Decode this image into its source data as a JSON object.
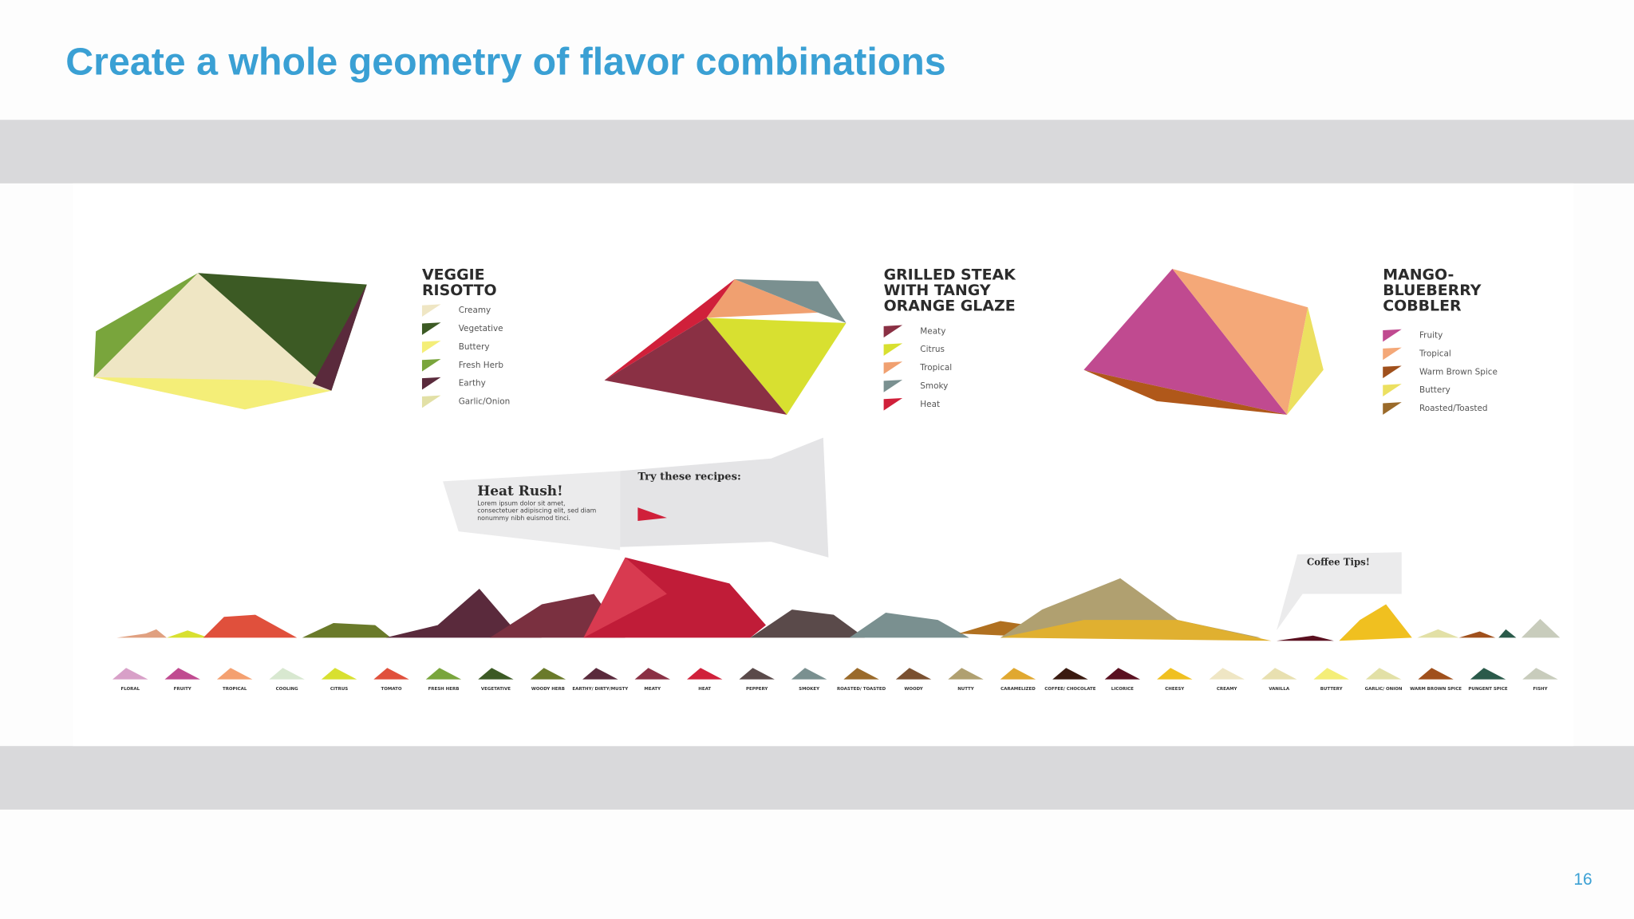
{
  "title": "Create a whole geometry of flavor combinations",
  "recipes": [
    {
      "name_lines": [
        "VEGGIE",
        "RISOTTO"
      ],
      "flavors": [
        {
          "label": "Creamy",
          "color": "#efe6c4"
        },
        {
          "label": "Vegetative",
          "color": "#3c5a24"
        },
        {
          "label": "Buttery",
          "color": "#f4ee78"
        },
        {
          "label": "Fresh Herb",
          "color": "#79a53c"
        },
        {
          "label": "Earthy",
          "color": "#5a2a3c"
        },
        {
          "label": "Garlic/Onion",
          "color": "#e2e0a6"
        }
      ]
    },
    {
      "name_lines": [
        "GRILLED STEAK",
        "WITH TANGY",
        "ORANGE GLAZE"
      ],
      "flavors": [
        {
          "label": "Meaty",
          "color": "#8a3044"
        },
        {
          "label": "Citrus",
          "color": "#d8e030"
        },
        {
          "label": "Tropical",
          "color": "#f0a070"
        },
        {
          "label": "Smoky",
          "color": "#7a9090"
        },
        {
          "label": "Heat",
          "color": "#d0203a"
        }
      ]
    },
    {
      "name_lines": [
        "MANGO-",
        "BLUEBERRY",
        "COBBLER"
      ],
      "flavors": [
        {
          "label": "Fruity",
          "color": "#c04a90"
        },
        {
          "label": "Tropical",
          "color": "#f4a878"
        },
        {
          "label": "Warm Brown Spice",
          "color": "#a0501c"
        },
        {
          "label": "Buttery",
          "color": "#ece060"
        },
        {
          "label": "Roasted/Toasted",
          "color": "#9a6a2a"
        }
      ]
    }
  ],
  "callouts": [
    {
      "title": "Heat Rush!",
      "text": "Lorem ipsum dolor sit amet, consectetuer adipiscing elit, sed diam nonummy nibh euismod tinci."
    },
    {
      "title": "Try these recipes:"
    },
    {
      "title": "Coffee Tips!"
    }
  ],
  "flavor_scale": [
    {
      "label": "FLORAL",
      "color": "#d8a0c8"
    },
    {
      "label": "FRUITY",
      "color": "#c04a90"
    },
    {
      "label": "TROPICAL",
      "color": "#f4a070"
    },
    {
      "label": "COOLING",
      "color": "#d8e8d0"
    },
    {
      "label": "CITRUS",
      "color": "#d8e030"
    },
    {
      "label": "TOMATO",
      "color": "#e0503c"
    },
    {
      "label": "FRESH HERB",
      "color": "#79a53c"
    },
    {
      "label": "VEGETATIVE",
      "color": "#3c5a24"
    },
    {
      "label": "WOODY HERB",
      "color": "#6a7a2a"
    },
    {
      "label": "EARTHY/ DIRTY/MUSTY",
      "color": "#5a2a3c"
    },
    {
      "label": "MEATY",
      "color": "#8a3044"
    },
    {
      "label": "HEAT",
      "color": "#d0203a"
    },
    {
      "label": "PEPPERY",
      "color": "#5a4a4a"
    },
    {
      "label": "SMOKEY",
      "color": "#7a9090"
    },
    {
      "label": "ROASTED/ TOASTED",
      "color": "#9a6a2a"
    },
    {
      "label": "WOODY",
      "color": "#7a5030"
    },
    {
      "label": "NUTTY",
      "color": "#b0a070"
    },
    {
      "label": "CARAMELIZED",
      "color": "#e0a830"
    },
    {
      "label": "COFFEE/ CHOCOLATE",
      "color": "#3a1a10"
    },
    {
      "label": "LICORICE",
      "color": "#5a1020"
    },
    {
      "label": "CHEESY",
      "color": "#f0c020"
    },
    {
      "label": "CREAMY",
      "color": "#efe6c4"
    },
    {
      "label": "VANILLA",
      "color": "#e8e0b0"
    },
    {
      "label": "BUTTERY",
      "color": "#f4ee78"
    },
    {
      "label": "GARLIC/ ONION",
      "color": "#e2e0a6"
    },
    {
      "label": "WARM BROWN SPICE",
      "color": "#a0501c"
    },
    {
      "label": "PUNGENT SPICE",
      "color": "#2a5a4a"
    },
    {
      "label": "FISHY",
      "color": "#c8ccbc"
    }
  ],
  "page_number": "16"
}
